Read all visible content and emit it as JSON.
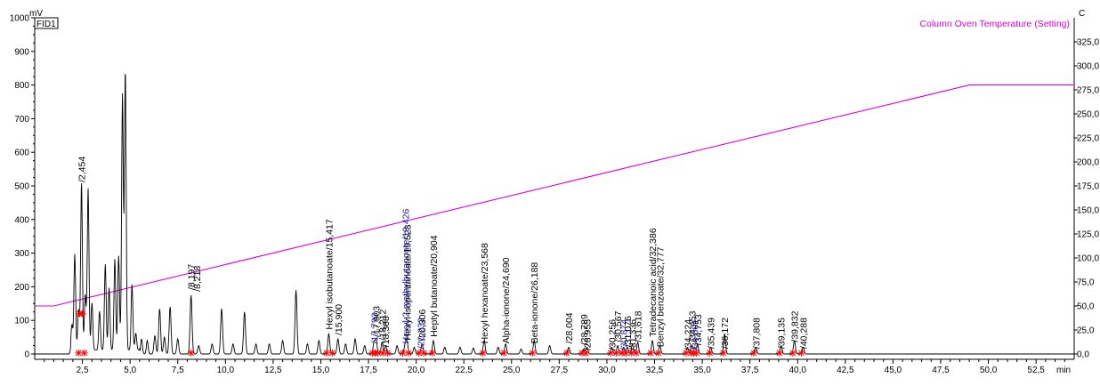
{
  "chart_data": {
    "type": "line",
    "detector_label": "FID1",
    "y_left_unit": "mV",
    "y_right_unit": "C",
    "x_unit": "min",
    "xlim": [
      0,
      54.5
    ],
    "ylim_left": [
      0,
      1000
    ],
    "ylim_right": [
      0,
      350
    ],
    "x_ticks": [
      "2,5",
      "5,0",
      "7,5",
      "10,0",
      "12,5",
      "15,0",
      "17,5",
      "20,0",
      "22,5",
      "25,0",
      "27,5",
      "30,0",
      "32,5",
      "35,0",
      "37,5",
      "40,0",
      "42,5",
      "45,0",
      "47,5",
      "50,0",
      "52,5"
    ],
    "y_left_ticks": [
      "0",
      "100",
      "200",
      "300",
      "400",
      "500",
      "600",
      "700",
      "800",
      "900",
      "1000"
    ],
    "y_right_ticks": [
      "0,0",
      "25,0",
      "50,0",
      "75,0",
      "100,0",
      "125,0",
      "150,0",
      "175,0",
      "200,0",
      "225,0",
      "250,0",
      "275,0",
      "300,0",
      "325,0"
    ],
    "temperature_series": {
      "name": "Column Oven Temperature (Setting)",
      "color": "#e000e0",
      "points": [
        [
          0,
          50
        ],
        [
          1.0,
          50
        ],
        [
          49.0,
          280
        ],
        [
          54.5,
          280
        ]
      ]
    },
    "chromatogram_peaks": [
      [
        1.95,
        75
      ],
      [
        2.1,
        285
      ],
      [
        2.3,
        120
      ],
      [
        2.454,
        500
      ],
      [
        2.65,
        165
      ],
      [
        2.8,
        480
      ],
      [
        3.0,
        140
      ],
      [
        3.4,
        115
      ],
      [
        3.7,
        255
      ],
      [
        3.9,
        185
      ],
      [
        4.2,
        270
      ],
      [
        4.4,
        280
      ],
      [
        4.6,
        760
      ],
      [
        4.75,
        835
      ],
      [
        5.1,
        195
      ],
      [
        5.3,
        50
      ],
      [
        5.6,
        45
      ],
      [
        5.9,
        40
      ],
      [
        6.3,
        55
      ],
      [
        6.55,
        135
      ],
      [
        6.8,
        50
      ],
      [
        7.1,
        140
      ],
      [
        7.5,
        45
      ],
      [
        8.197,
        175
      ],
      [
        8.6,
        25
      ],
      [
        9.3,
        30
      ],
      [
        9.8,
        135
      ],
      [
        10.4,
        30
      ],
      [
        11.0,
        125
      ],
      [
        11.6,
        30
      ],
      [
        12.3,
        30
      ],
      [
        13.0,
        40
      ],
      [
        13.7,
        190
      ],
      [
        14.3,
        30
      ],
      [
        14.9,
        40
      ],
      [
        15.417,
        60
      ],
      [
        15.9,
        45
      ],
      [
        16.3,
        30
      ],
      [
        16.8,
        45
      ],
      [
        17.3,
        25
      ],
      [
        17.793,
        35
      ],
      [
        17.903,
        40
      ],
      [
        18.212,
        35
      ],
      [
        18.4,
        25
      ],
      [
        19.0,
        25
      ],
      [
        19.426,
        30
      ],
      [
        19.523,
        35
      ],
      [
        19.9,
        20
      ],
      [
        20.306,
        30
      ],
      [
        20.904,
        40
      ],
      [
        21.5,
        20
      ],
      [
        22.3,
        20
      ],
      [
        23.0,
        18
      ],
      [
        23.568,
        40
      ],
      [
        24.3,
        20
      ],
      [
        24.69,
        30
      ],
      [
        25.5,
        15
      ],
      [
        26.188,
        40
      ],
      [
        27.0,
        25
      ],
      [
        28.004,
        20
      ],
      [
        28.789,
        15
      ],
      [
        28.955,
        20
      ],
      [
        30.256,
        20
      ],
      [
        30.567,
        25
      ],
      [
        30.874,
        20
      ],
      [
        31.076,
        20
      ],
      [
        31.336,
        30
      ],
      [
        31.618,
        35
      ],
      [
        32.386,
        40
      ],
      [
        32.777,
        25
      ],
      [
        34.224,
        20
      ],
      [
        34.453,
        25
      ],
      [
        34.601,
        20
      ],
      [
        34.753,
        30
      ],
      [
        35.439,
        20
      ],
      [
        36.172,
        60
      ],
      [
        37.808,
        20
      ],
      [
        39.135,
        25
      ],
      [
        39.832,
        40
      ],
      [
        40.288,
        20
      ]
    ],
    "peak_labels": [
      {
        "x": 2.454,
        "y": 500,
        "text": "/2,454",
        "color": "black"
      },
      {
        "x": 8.197,
        "y": 180,
        "text": "/8,197",
        "color": "black"
      },
      {
        "x": 8.5,
        "y": 175,
        "text": "/8,218",
        "color": "black"
      },
      {
        "x": 15.417,
        "y": 62,
        "text": "Hexyl isobutanoate/15,417",
        "color": "black"
      },
      {
        "x": 15.9,
        "y": 45,
        "text": "/15,900",
        "color": "black"
      },
      {
        "x": 17.793,
        "y": 20,
        "text": "/17,793",
        "color": "blue"
      },
      {
        "x": 17.903,
        "y": 40,
        "text": "/17,903",
        "color": "black"
      },
      {
        "x": 18.212,
        "y": 30,
        "text": "/18,212",
        "color": "black"
      },
      {
        "x": 18.388,
        "y": 10,
        "text": "/18,388",
        "color": "black"
      },
      {
        "x": 19.426,
        "y": 20,
        "text": "Hexyl-2-methylbutanoate/19,426",
        "color": "blue"
      },
      {
        "x": 19.523,
        "y": 30,
        "text": "Hexyl isopentanoate/19,523",
        "color": "black"
      },
      {
        "x": 20.232,
        "y": 5,
        "text": "/20,232",
        "color": "blue"
      },
      {
        "x": 20.306,
        "y": 30,
        "text": "/20,306",
        "color": "black"
      },
      {
        "x": 20.904,
        "y": 40,
        "text": "Heptyl butanoate/20,904",
        "color": "black"
      },
      {
        "x": 23.568,
        "y": 20,
        "text": "Hexyl hexanoate/23,568",
        "color": "black"
      },
      {
        "x": 24.69,
        "y": 20,
        "text": "Alpha-ionone/24,690",
        "color": "black"
      },
      {
        "x": 26.188,
        "y": 20,
        "text": "Beta-ionone/26,188",
        "color": "black"
      },
      {
        "x": 28.004,
        "y": 20,
        "text": "/28,004",
        "color": "black"
      },
      {
        "x": 28.789,
        "y": 15,
        "text": "/28,789",
        "color": "black"
      },
      {
        "x": 28.955,
        "y": 0,
        "text": "/28,955",
        "color": "black"
      },
      {
        "x": 30.256,
        "y": 0,
        "text": "/30,256",
        "color": "black"
      },
      {
        "x": 30.567,
        "y": 25,
        "text": "/30,567",
        "color": "black"
      },
      {
        "x": 30.874,
        "y": 0,
        "text": "/30,874",
        "color": "blue"
      },
      {
        "x": 31.076,
        "y": 10,
        "text": "/31,076",
        "color": "black"
      },
      {
        "x": 31.336,
        "y": 0,
        "text": "/31,336",
        "color": "black"
      },
      {
        "x": 31.618,
        "y": 25,
        "text": "/31,618",
        "color": "black"
      },
      {
        "x": 32.386,
        "y": 40,
        "text": "Tetradecanoic acid/32,386",
        "color": "black"
      },
      {
        "x": 32.777,
        "y": 10,
        "text": "Benzyl benzoate/32,777",
        "color": "black"
      },
      {
        "x": 34.224,
        "y": 0,
        "text": "/34,224",
        "color": "black"
      },
      {
        "x": 34.453,
        "y": 25,
        "text": "/34,453",
        "color": "black"
      },
      {
        "x": 34.601,
        "y": 0,
        "text": "/34,601",
        "color": "blue"
      },
      {
        "x": 34.753,
        "y": 15,
        "text": "/34,753",
        "color": "black"
      },
      {
        "x": 35.439,
        "y": 5,
        "text": "/35,439",
        "color": "black"
      },
      {
        "x": 36.172,
        "y": 5,
        "text": "/36,172",
        "color": "black"
      },
      {
        "x": 37.808,
        "y": 5,
        "text": "/37,808",
        "color": "black"
      },
      {
        "x": 39.135,
        "y": 5,
        "text": "/39,135",
        "color": "black"
      },
      {
        "x": 39.832,
        "y": 25,
        "text": "/39,832",
        "color": "black"
      },
      {
        "x": 40.288,
        "y": 5,
        "text": "/40,288",
        "color": "black"
      }
    ],
    "integration_marks_x": [
      2.3,
      2.6,
      8.2,
      15.3,
      15.6,
      17.7,
      17.85,
      18.0,
      18.25,
      18.5,
      19.3,
      19.6,
      20.15,
      20.4,
      20.85,
      23.5,
      24.6,
      26.1,
      27.9,
      28.7,
      28.9,
      30.2,
      30.5,
      30.8,
      31.0,
      31.3,
      31.55,
      32.3,
      32.7,
      34.15,
      34.4,
      34.55,
      34.7,
      35.4,
      36.1,
      37.7,
      39.05,
      39.75,
      40.2
    ],
    "grid": false,
    "legend": "top-right"
  }
}
